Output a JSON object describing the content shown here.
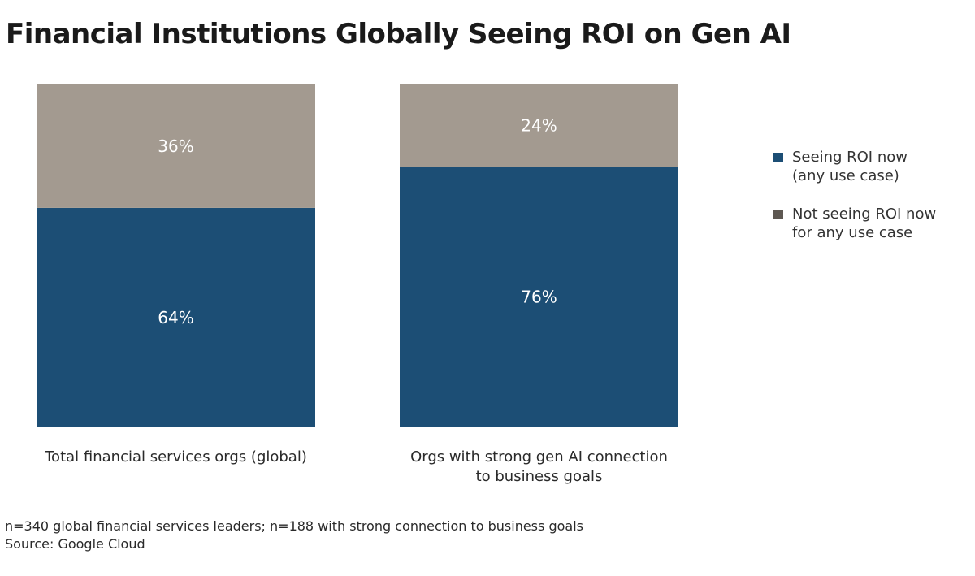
{
  "chart_data": {
    "type": "bar",
    "stacked": true,
    "title": "Financial Institutions Globally Seeing ROI on Gen AI",
    "categories": [
      [
        "Total financial services orgs (global)"
      ],
      [
        "Orgs with strong gen AI connection",
        "to business goals"
      ]
    ],
    "series": [
      {
        "name": [
          "Seeing ROI now",
          "(any use case)"
        ],
        "color": "#1c4e75",
        "values": [
          64,
          76
        ],
        "labels": [
          "64%",
          "76%"
        ]
      },
      {
        "name": [
          "Not seeing ROI now",
          "for any use case"
        ],
        "color": "#a39a90",
        "legend_color": "#5e5852",
        "values": [
          36,
          24
        ],
        "labels": [
          "36%",
          "24%"
        ]
      }
    ],
    "ylim": [
      0,
      100
    ],
    "xlabel": "",
    "ylabel": "",
    "legend_position": "right"
  },
  "footer": {
    "note": "n=340 global financial services leaders; n=188 with strong connection to business goals",
    "source": "Source: Google Cloud"
  }
}
